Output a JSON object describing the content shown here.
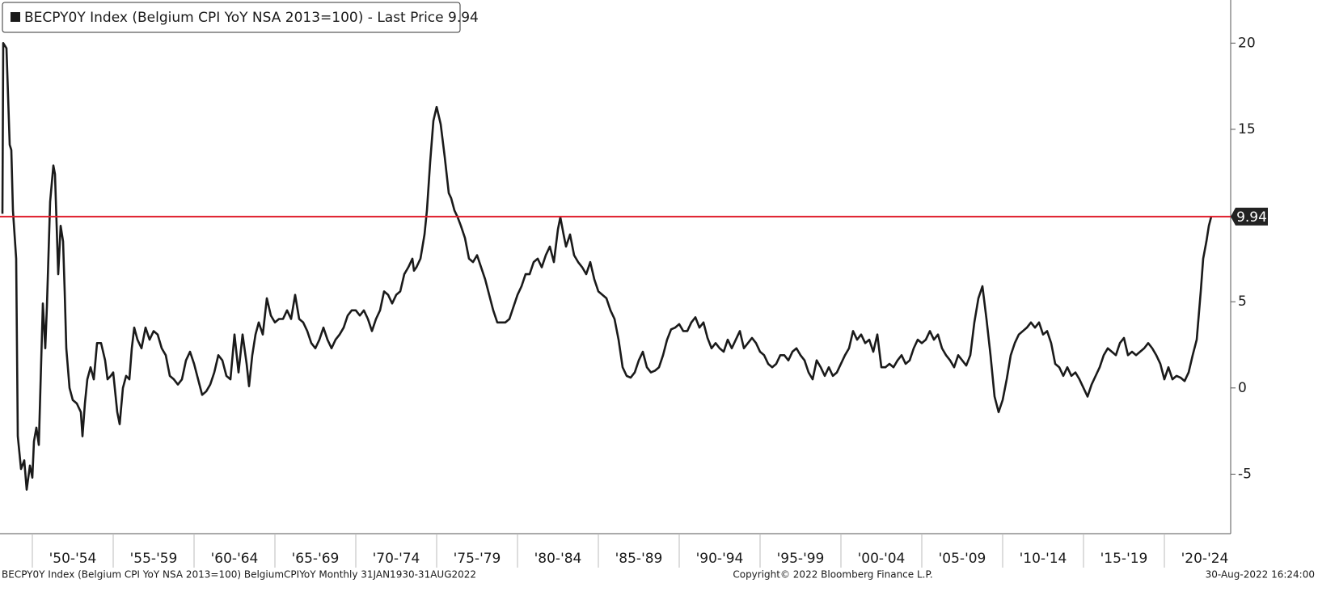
{
  "chart_data": {
    "type": "line",
    "series": [
      {
        "name": "BECPY0Y Index (Belgium CPI YoY NSA 2013=100) - Last Price 9.94",
        "color": "#1a1a1a",
        "values": [
          10.1,
          20,
          19.7,
          14.1,
          13.8,
          10.3,
          7.5,
          -2.8,
          -4.7,
          -4.2,
          -5.9,
          -4.5,
          -5.2,
          -3.1,
          -2.3,
          -3.3,
          0,
          4.9,
          2.3,
          4.7,
          10.8,
          12.9,
          12.4,
          6.6,
          9.4,
          8.5,
          5.6,
          2.3,
          0,
          -0.7,
          -0.9,
          -1.4,
          -2.8,
          -0.9,
          0.5,
          1.2,
          0.5,
          2.6,
          2.6,
          1.6,
          0.5,
          0.7,
          0.9,
          -1.4,
          -2.1,
          0,
          0.7,
          0.5,
          2.3,
          3.5,
          2.8,
          2.3,
          3.5,
          2.8,
          3.3,
          3.1,
          2.3,
          1.9,
          0.7,
          0.5,
          0.2,
          0.5,
          1.6,
          2.1,
          1.4,
          0.5,
          -0.4,
          -0.2,
          0.2,
          0.9,
          1.9,
          1.6,
          0.7,
          0.5,
          3.1,
          0.9,
          3.1,
          1.4,
          0.1,
          1.9,
          3.1,
          3.8,
          3.1,
          5.2,
          4.2,
          3.8,
          4.0,
          4.0,
          4.5,
          4.0,
          5.4,
          4.0,
          3.8,
          3.3,
          2.6,
          2.3,
          2.8,
          3.5,
          2.8,
          2.3,
          2.8,
          3.1,
          3.5,
          4.2,
          4.5,
          4.5,
          4.2,
          4.5,
          4.0,
          3.3,
          4.0,
          4.5,
          5.6,
          5.4,
          4.9,
          5.4,
          5.6,
          6.6,
          7.0,
          7.5,
          6.8,
          7.0,
          7.5,
          8.9,
          10.3,
          13.1,
          15.5,
          16.3,
          15.3,
          13.4,
          11.3,
          11.0,
          10.3,
          9.9,
          9.4,
          8.7,
          7.5,
          7.3,
          7.7,
          7.0,
          6.3,
          5.4,
          4.5,
          3.8,
          3.8,
          3.8,
          4.0,
          4.7,
          5.4,
          5.9,
          6.6,
          6.6,
          7.3,
          7.5,
          7.0,
          7.7,
          8.2,
          7.3,
          9.2,
          9.9,
          8.9,
          8.2,
          8.9,
          7.7,
          7.3,
          7.0,
          6.6,
          7.3,
          6.3,
          5.6,
          5.4,
          5.2,
          4.5,
          4.0,
          2.8,
          1.2,
          0.7,
          0.6,
          0.9,
          1.6,
          2.1,
          1.2,
          0.9,
          1.0,
          1.2,
          1.9,
          2.8,
          3.4,
          3.5,
          3.7,
          3.3,
          3.3,
          3.8,
          4.1,
          3.5,
          3.8,
          2.9,
          2.3,
          2.6,
          2.3,
          2.1,
          2.8,
          2.3,
          2.8,
          3.3,
          2.3,
          2.6,
          2.9,
          2.6,
          2.1,
          1.9,
          1.4,
          1.2,
          1.4,
          1.9,
          1.9,
          1.6,
          2.1,
          2.3,
          1.9,
          1.6,
          0.9,
          0.5,
          1.6,
          1.2,
          0.7,
          1.2,
          0.7,
          0.9,
          1.4,
          1.9,
          2.3,
          3.3,
          2.8,
          3.1,
          2.6,
          2.8,
          2.1,
          3.1,
          1.2,
          1.2,
          1.4,
          1.2,
          1.6,
          1.9,
          1.4,
          1.6,
          2.3,
          2.8,
          2.6,
          2.8,
          3.3,
          2.8,
          3.1,
          2.3,
          1.9,
          1.6,
          1.2,
          1.9,
          1.6,
          1.3,
          1.9,
          3.8,
          5.2,
          5.9,
          4.0,
          1.9,
          -0.5,
          -1.4,
          -0.7,
          0.5,
          1.9,
          2.6,
          3.1,
          3.3,
          3.5,
          3.8,
          3.5,
          3.8,
          3.1,
          3.3,
          2.6,
          1.4,
          1.2,
          0.7,
          1.2,
          0.7,
          0.9,
          0.5,
          0,
          -0.5,
          0.2,
          0.7,
          1.2,
          1.9,
          2.3,
          2.1,
          1.9,
          2.6,
          2.9,
          1.9,
          2.1,
          1.9,
          2.1,
          2.3,
          2.6,
          2.3,
          1.9,
          1.4,
          0.5,
          1.2,
          0.5,
          0.7,
          0.6,
          0.4,
          0.9,
          1.9,
          2.8,
          5.6,
          7.5,
          8.5,
          9.4,
          9.94
        ]
      }
    ],
    "x": [
      1948.15,
      1948.2,
      1948.4,
      1948.6,
      1948.7,
      1948.8,
      1949.0,
      1949.1,
      1949.3,
      1949.5,
      1949.65,
      1949.85,
      1950.0,
      1950.1,
      1950.25,
      1950.4,
      1950.5,
      1950.65,
      1950.8,
      1950.9,
      1951.1,
      1951.3,
      1951.4,
      1951.6,
      1951.75,
      1951.9,
      1952.0,
      1952.1,
      1952.3,
      1952.5,
      1952.75,
      1953.0,
      1953.1,
      1953.25,
      1953.4,
      1953.6,
      1953.8,
      1954.0,
      1954.25,
      1954.5,
      1954.65,
      1954.85,
      1955.0,
      1955.25,
      1955.4,
      1955.6,
      1955.8,
      1956.0,
      1956.15,
      1956.3,
      1956.5,
      1956.75,
      1957.0,
      1957.25,
      1957.5,
      1957.75,
      1958.0,
      1958.25,
      1958.5,
      1958.75,
      1959.0,
      1959.25,
      1959.5,
      1959.75,
      1960.0,
      1960.25,
      1960.5,
      1960.75,
      1961.0,
      1961.25,
      1961.5,
      1961.75,
      1962.0,
      1962.25,
      1962.5,
      1962.75,
      1963.0,
      1963.25,
      1963.4,
      1963.6,
      1963.8,
      1964.0,
      1964.25,
      1964.5,
      1964.75,
      1965.0,
      1965.25,
      1965.5,
      1965.75,
      1966.0,
      1966.25,
      1966.5,
      1966.75,
      1967.0,
      1967.25,
      1967.5,
      1967.75,
      1968.0,
      1968.25,
      1968.5,
      1968.75,
      1969.0,
      1969.25,
      1969.5,
      1969.75,
      1970.0,
      1970.25,
      1970.5,
      1970.75,
      1971.0,
      1971.25,
      1971.5,
      1971.75,
      1972.0,
      1972.25,
      1972.5,
      1972.75,
      1973.0,
      1973.25,
      1973.5,
      1973.6,
      1973.75,
      1974.0,
      1974.25,
      1974.4,
      1974.6,
      1974.8,
      1975.0,
      1975.25,
      1975.5,
      1975.75,
      1975.9,
      1976.1,
      1976.3,
      1976.5,
      1976.75,
      1977.0,
      1977.25,
      1977.5,
      1977.75,
      1978.0,
      1978.25,
      1978.5,
      1978.75,
      1979.0,
      1979.25,
      1979.5,
      1979.75,
      1980.0,
      1980.25,
      1980.5,
      1980.75,
      1981.0,
      1981.25,
      1981.5,
      1981.75,
      1982.0,
      1982.25,
      1982.5,
      1982.65,
      1982.85,
      1983.0,
      1983.25,
      1983.5,
      1983.75,
      1984.0,
      1984.25,
      1984.5,
      1984.75,
      1985.0,
      1985.25,
      1985.5,
      1985.75,
      1986.0,
      1986.25,
      1986.5,
      1986.75,
      1987.0,
      1987.25,
      1987.5,
      1987.75,
      1988.0,
      1988.25,
      1988.5,
      1988.75,
      1989.0,
      1989.25,
      1989.5,
      1989.75,
      1990.0,
      1990.25,
      1990.5,
      1990.75,
      1991.0,
      1991.25,
      1991.5,
      1991.75,
      1992.0,
      1992.25,
      1992.5,
      1992.75,
      1993.0,
      1993.25,
      1993.5,
      1993.75,
      1994.0,
      1994.25,
      1994.5,
      1994.75,
      1995.0,
      1995.25,
      1995.5,
      1995.75,
      1996.0,
      1996.25,
      1996.5,
      1996.75,
      1997.0,
      1997.25,
      1997.5,
      1997.75,
      1998.0,
      1998.25,
      1998.5,
      1998.75,
      1999.0,
      1999.25,
      1999.5,
      1999.75,
      2000.0,
      2000.25,
      2000.5,
      2000.75,
      2001.0,
      2001.25,
      2001.5,
      2001.75,
      2002.0,
      2002.25,
      2002.5,
      2002.75,
      2003.0,
      2003.25,
      2003.5,
      2003.75,
      2004.0,
      2004.25,
      2004.5,
      2004.75,
      2005.0,
      2005.25,
      2005.5,
      2005.75,
      2006.0,
      2006.25,
      2006.5,
      2006.75,
      2007.0,
      2007.25,
      2007.5,
      2007.75,
      2008.0,
      2008.25,
      2008.5,
      2008.75,
      2009.0,
      2009.25,
      2009.5,
      2009.75,
      2010.0,
      2010.25,
      2010.5,
      2010.75,
      2011.0,
      2011.25,
      2011.5,
      2011.75,
      2012.0,
      2012.25,
      2012.5,
      2012.75,
      2013.0,
      2013.25,
      2013.5,
      2013.75,
      2014.0,
      2014.25,
      2014.5,
      2014.75,
      2015.0,
      2015.25,
      2015.5,
      2015.75,
      2016.0,
      2016.25,
      2016.5,
      2016.75,
      2017.0,
      2017.25,
      2017.5,
      2017.75,
      2018.0,
      2018.25,
      2018.5,
      2018.75,
      2019.0,
      2019.25,
      2019.5,
      2019.75,
      2020.0,
      2020.25,
      2020.5,
      2020.75,
      2021.0,
      2021.25,
      2021.5,
      2021.75,
      2022.0,
      2022.25,
      2022.4,
      2022.6,
      2022.75,
      2022.9
    ],
    "xlim": [
      1948,
      2024.1
    ],
    "xticks": [
      {
        "value": 1950,
        "label": "'50-'54"
      },
      {
        "value": 1955,
        "label": "'55-'59"
      },
      {
        "value": 1960,
        "label": "'60-'64"
      },
      {
        "value": 1965,
        "label": "'65-'69"
      },
      {
        "value": 1970,
        "label": "'70-'74"
      },
      {
        "value": 1975,
        "label": "'75-'79"
      },
      {
        "value": 1980,
        "label": "'80-'84"
      },
      {
        "value": 1985,
        "label": "'85-'89"
      },
      {
        "value": 1990,
        "label": "'90-'94"
      },
      {
        "value": 1995,
        "label": "'95-'99"
      },
      {
        "value": 2000,
        "label": "'00-'04"
      },
      {
        "value": 2005,
        "label": "'05-'09"
      },
      {
        "value": 2010,
        "label": "'10-'14"
      },
      {
        "value": 2015,
        "label": "'15-'19"
      },
      {
        "value": 2020,
        "label": "'20-'24"
      }
    ],
    "ylim": [
      -8.45,
      22.5
    ],
    "yticks": [
      -5,
      0,
      5,
      15,
      20
    ],
    "last_price": 9.94,
    "last_price_color": "#e0202e",
    "footer_left": "BECPY0Y Index (Belgium CPI YoY NSA 2013=100) BelgiumCPIYoY  Monthly 31JAN1930-31AUG2022",
    "footer_center": "Copyright© 2022 Bloomberg Finance L.P.",
    "footer_right": "30-Aug-2022 16:24:00"
  }
}
